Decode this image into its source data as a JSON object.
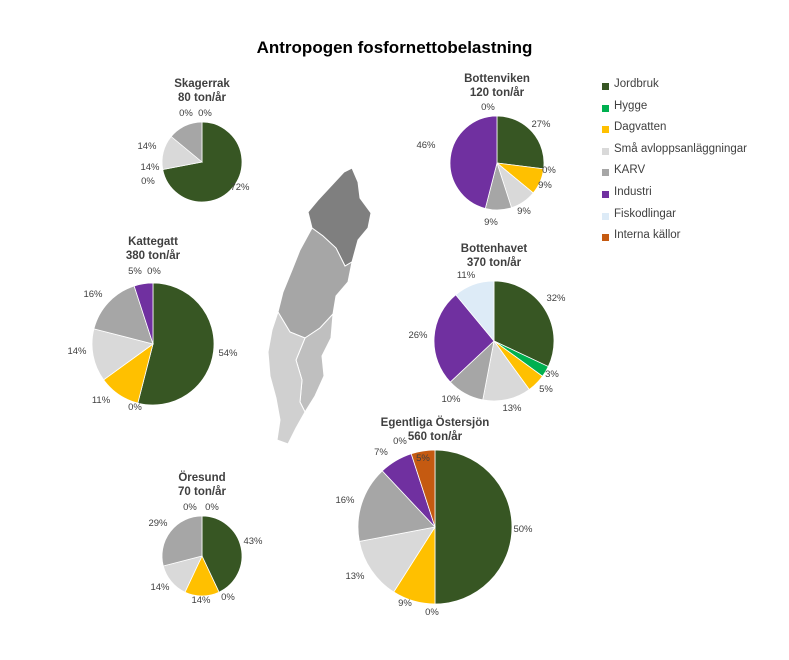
{
  "title": "Antropogen fosfornettobelastning",
  "legend": [
    {
      "label": "Jordbruk",
      "color": "#375623"
    },
    {
      "label": "Hygge",
      "color": "#00B050"
    },
    {
      "label": "Dagvatten",
      "color": "#FFC000"
    },
    {
      "label": "Små avloppsanläggningar",
      "color": "#D9D9D9"
    },
    {
      "label": "KARV",
      "color": "#A6A6A6"
    },
    {
      "label": "Industri",
      "color": "#7030A0"
    },
    {
      "label": "Fiskodlingar",
      "color": "#DDEBF7"
    },
    {
      "label": "Interna källor",
      "color": "#C55A11"
    }
  ],
  "chart_data": [
    {
      "type": "pie",
      "title": "Skagerrak",
      "subtitle": "80 ton/år",
      "labels": [
        "Jordbruk",
        "Hygge",
        "Dagvatten",
        "Små avloppsanläggningar",
        "KARV",
        "Industri"
      ],
      "values": [
        72,
        0,
        0,
        14,
        14,
        0
      ]
    },
    {
      "type": "pie",
      "title": "Bottenviken",
      "subtitle": "120 ton/år",
      "labels": [
        "Jordbruk",
        "Hygge",
        "Dagvatten",
        "Små avloppsanläggningar",
        "KARV",
        "Industri",
        "Fiskodlingar"
      ],
      "values": [
        27,
        0,
        9,
        9,
        9,
        46,
        0
      ]
    },
    {
      "type": "pie",
      "title": "Kattegatt",
      "subtitle": "380 ton/år",
      "labels": [
        "Jordbruk",
        "Hygge",
        "Dagvatten",
        "Små avloppsanläggningar",
        "KARV",
        "Industri",
        "Fiskodlingar"
      ],
      "values": [
        54,
        0,
        11,
        14,
        16,
        5,
        0
      ]
    },
    {
      "type": "pie",
      "title": "Bottenhavet",
      "subtitle": "370 ton/år",
      "labels": [
        "Jordbruk",
        "Hygge",
        "Dagvatten",
        "Små avloppsanläggningar",
        "KARV",
        "Industri",
        "Fiskodlingar"
      ],
      "values": [
        32,
        3,
        5,
        13,
        10,
        26,
        11
      ]
    },
    {
      "type": "pie",
      "title": "Egentliga Östersjön",
      "subtitle": "560 ton/år",
      "labels": [
        "Jordbruk",
        "Hygge",
        "Dagvatten",
        "Små avloppsanläggningar",
        "KARV",
        "Industri",
        "Fiskodlingar",
        "Interna källor"
      ],
      "values": [
        50,
        0,
        9,
        13,
        16,
        7,
        0,
        5
      ]
    },
    {
      "type": "pie",
      "title": "Öresund",
      "subtitle": "70 ton/år",
      "labels": [
        "Jordbruk",
        "Hygge",
        "Dagvatten",
        "Små avloppsanläggningar",
        "KARV",
        "Industri",
        "Fiskodlingar"
      ],
      "values": [
        43,
        0,
        14,
        14,
        29,
        0,
        0
      ]
    }
  ]
}
